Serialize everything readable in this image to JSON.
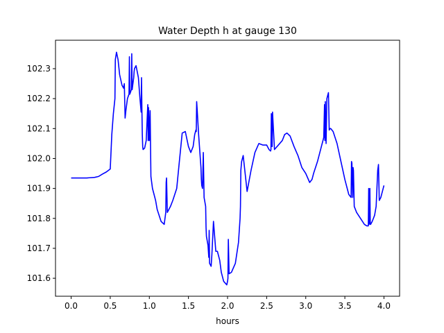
{
  "chart_data": {
    "type": "line",
    "title": "Water Depth h at gauge 130",
    "xlabel": "hours",
    "ylabel": "",
    "xlim": [
      -0.2,
      4.2
    ],
    "ylim": [
      101.54,
      102.395
    ],
    "xticks": [
      0.0,
      0.5,
      1.0,
      1.5,
      2.0,
      2.5,
      3.0,
      3.5,
      4.0
    ],
    "xtick_labels": [
      "0.0",
      "0.5",
      "1.0",
      "1.5",
      "2.0",
      "2.5",
      "3.0",
      "3.5",
      "4.0"
    ],
    "yticks": [
      101.6,
      101.7,
      101.8,
      101.9,
      102.0,
      102.1,
      102.2,
      102.3
    ],
    "ytick_labels": [
      "101.6",
      "101.7",
      "101.8",
      "101.9",
      "102.0",
      "102.1",
      "102.2",
      "102.3"
    ],
    "grid": false,
    "series": [
      {
        "color": "#0000ff",
        "x": [
          0.0,
          0.1,
          0.2,
          0.3,
          0.35,
          0.4,
          0.45,
          0.5,
          0.52,
          0.54,
          0.56,
          0.565,
          0.58,
          0.6,
          0.62,
          0.65,
          0.67,
          0.68,
          0.69,
          0.7,
          0.72,
          0.74,
          0.745,
          0.75,
          0.77,
          0.775,
          0.78,
          0.79,
          0.8,
          0.805,
          0.81,
          0.83,
          0.86,
          0.88,
          0.895,
          0.9,
          0.905,
          0.91,
          0.915,
          0.92,
          0.94,
          0.96,
          0.98,
          0.985,
          0.99,
          1.0,
          1.01,
          1.015,
          1.02,
          1.03,
          1.04,
          1.06,
          1.08,
          1.1,
          1.15,
          1.19,
          1.21,
          1.215,
          1.22,
          1.23,
          1.27,
          1.3,
          1.35,
          1.38,
          1.42,
          1.46,
          1.5,
          1.53,
          1.56,
          1.58,
          1.595,
          1.6,
          1.605,
          1.61,
          1.63,
          1.66,
          1.665,
          1.67,
          1.68,
          1.69,
          1.7,
          1.72,
          1.725,
          1.73,
          1.75,
          1.76,
          1.765,
          1.77,
          1.78,
          1.79,
          1.8,
          1.82,
          1.85,
          1.87,
          1.9,
          1.92,
          1.95,
          1.99,
          2.0,
          2.005,
          2.01,
          2.02,
          2.05,
          2.1,
          2.14,
          2.16,
          2.165,
          2.17,
          2.18,
          2.2,
          2.25,
          2.3,
          2.35,
          2.4,
          2.45,
          2.5,
          2.53,
          2.55,
          2.555,
          2.56,
          2.57,
          2.575,
          2.6,
          2.65,
          2.7,
          2.73,
          2.76,
          2.8,
          2.85,
          2.9,
          2.95,
          3.0,
          3.05,
          3.08,
          3.1,
          3.15,
          3.2,
          3.23,
          3.24,
          3.245,
          3.25,
          3.26,
          3.27,
          3.28,
          3.29,
          3.3,
          3.31,
          3.32,
          3.35,
          3.4,
          3.45,
          3.5,
          3.55,
          3.58,
          3.585,
          3.59,
          3.6,
          3.605,
          3.61,
          3.62,
          3.65,
          3.7,
          3.75,
          3.78,
          3.8,
          3.805,
          3.81,
          3.82,
          3.825,
          3.83,
          3.85,
          3.88,
          3.9,
          3.92,
          3.925,
          3.93,
          3.94,
          3.96,
          3.98,
          4.0
        ],
        "y": [
          101.935,
          101.935,
          101.935,
          101.937,
          101.94,
          101.948,
          101.955,
          101.965,
          102.08,
          102.15,
          102.2,
          102.33,
          102.355,
          102.33,
          102.28,
          102.245,
          102.235,
          102.25,
          102.135,
          102.16,
          102.2,
          102.215,
          102.34,
          102.215,
          102.23,
          102.35,
          102.23,
          102.25,
          102.27,
          102.29,
          102.3,
          102.31,
          102.27,
          102.2,
          102.155,
          102.27,
          102.16,
          102.08,
          102.04,
          102.03,
          102.035,
          102.06,
          102.18,
          102.06,
          102.17,
          102.06,
          102.16,
          102.05,
          101.94,
          101.92,
          101.9,
          101.88,
          101.86,
          101.83,
          101.79,
          101.78,
          101.82,
          101.92,
          101.935,
          101.82,
          101.84,
          101.86,
          101.9,
          101.98,
          102.085,
          102.09,
          102.04,
          102.02,
          102.04,
          102.08,
          102.095,
          102.09,
          102.19,
          102.17,
          102.08,
          101.97,
          101.93,
          101.91,
          101.9,
          102.02,
          101.87,
          101.84,
          101.77,
          101.74,
          101.71,
          101.67,
          101.76,
          101.65,
          101.645,
          101.64,
          101.68,
          101.79,
          101.69,
          101.69,
          101.66,
          101.62,
          101.59,
          101.578,
          101.59,
          101.6,
          101.73,
          101.615,
          101.62,
          101.65,
          101.72,
          101.8,
          101.84,
          101.96,
          101.99,
          102.01,
          101.89,
          101.96,
          102.02,
          102.05,
          102.045,
          102.045,
          102.03,
          102.025,
          102.03,
          102.15,
          102.04,
          102.155,
          102.03,
          102.045,
          102.06,
          102.08,
          102.085,
          102.075,
          102.04,
          102.01,
          101.97,
          101.95,
          101.92,
          101.93,
          101.95,
          101.99,
          102.04,
          102.07,
          102.18,
          102.06,
          102.19,
          102.05,
          102.2,
          102.21,
          102.22,
          102.095,
          102.1,
          102.1,
          102.09,
          102.05,
          101.99,
          101.93,
          101.88,
          101.87,
          101.99,
          101.985,
          101.87,
          101.97,
          101.96,
          101.84,
          101.82,
          101.8,
          101.78,
          101.775,
          101.775,
          101.9,
          101.78,
          101.9,
          101.78,
          101.78,
          101.79,
          101.81,
          101.84,
          101.96,
          101.97,
          101.98,
          101.86,
          101.87,
          101.89,
          101.91
        ]
      }
    ]
  }
}
